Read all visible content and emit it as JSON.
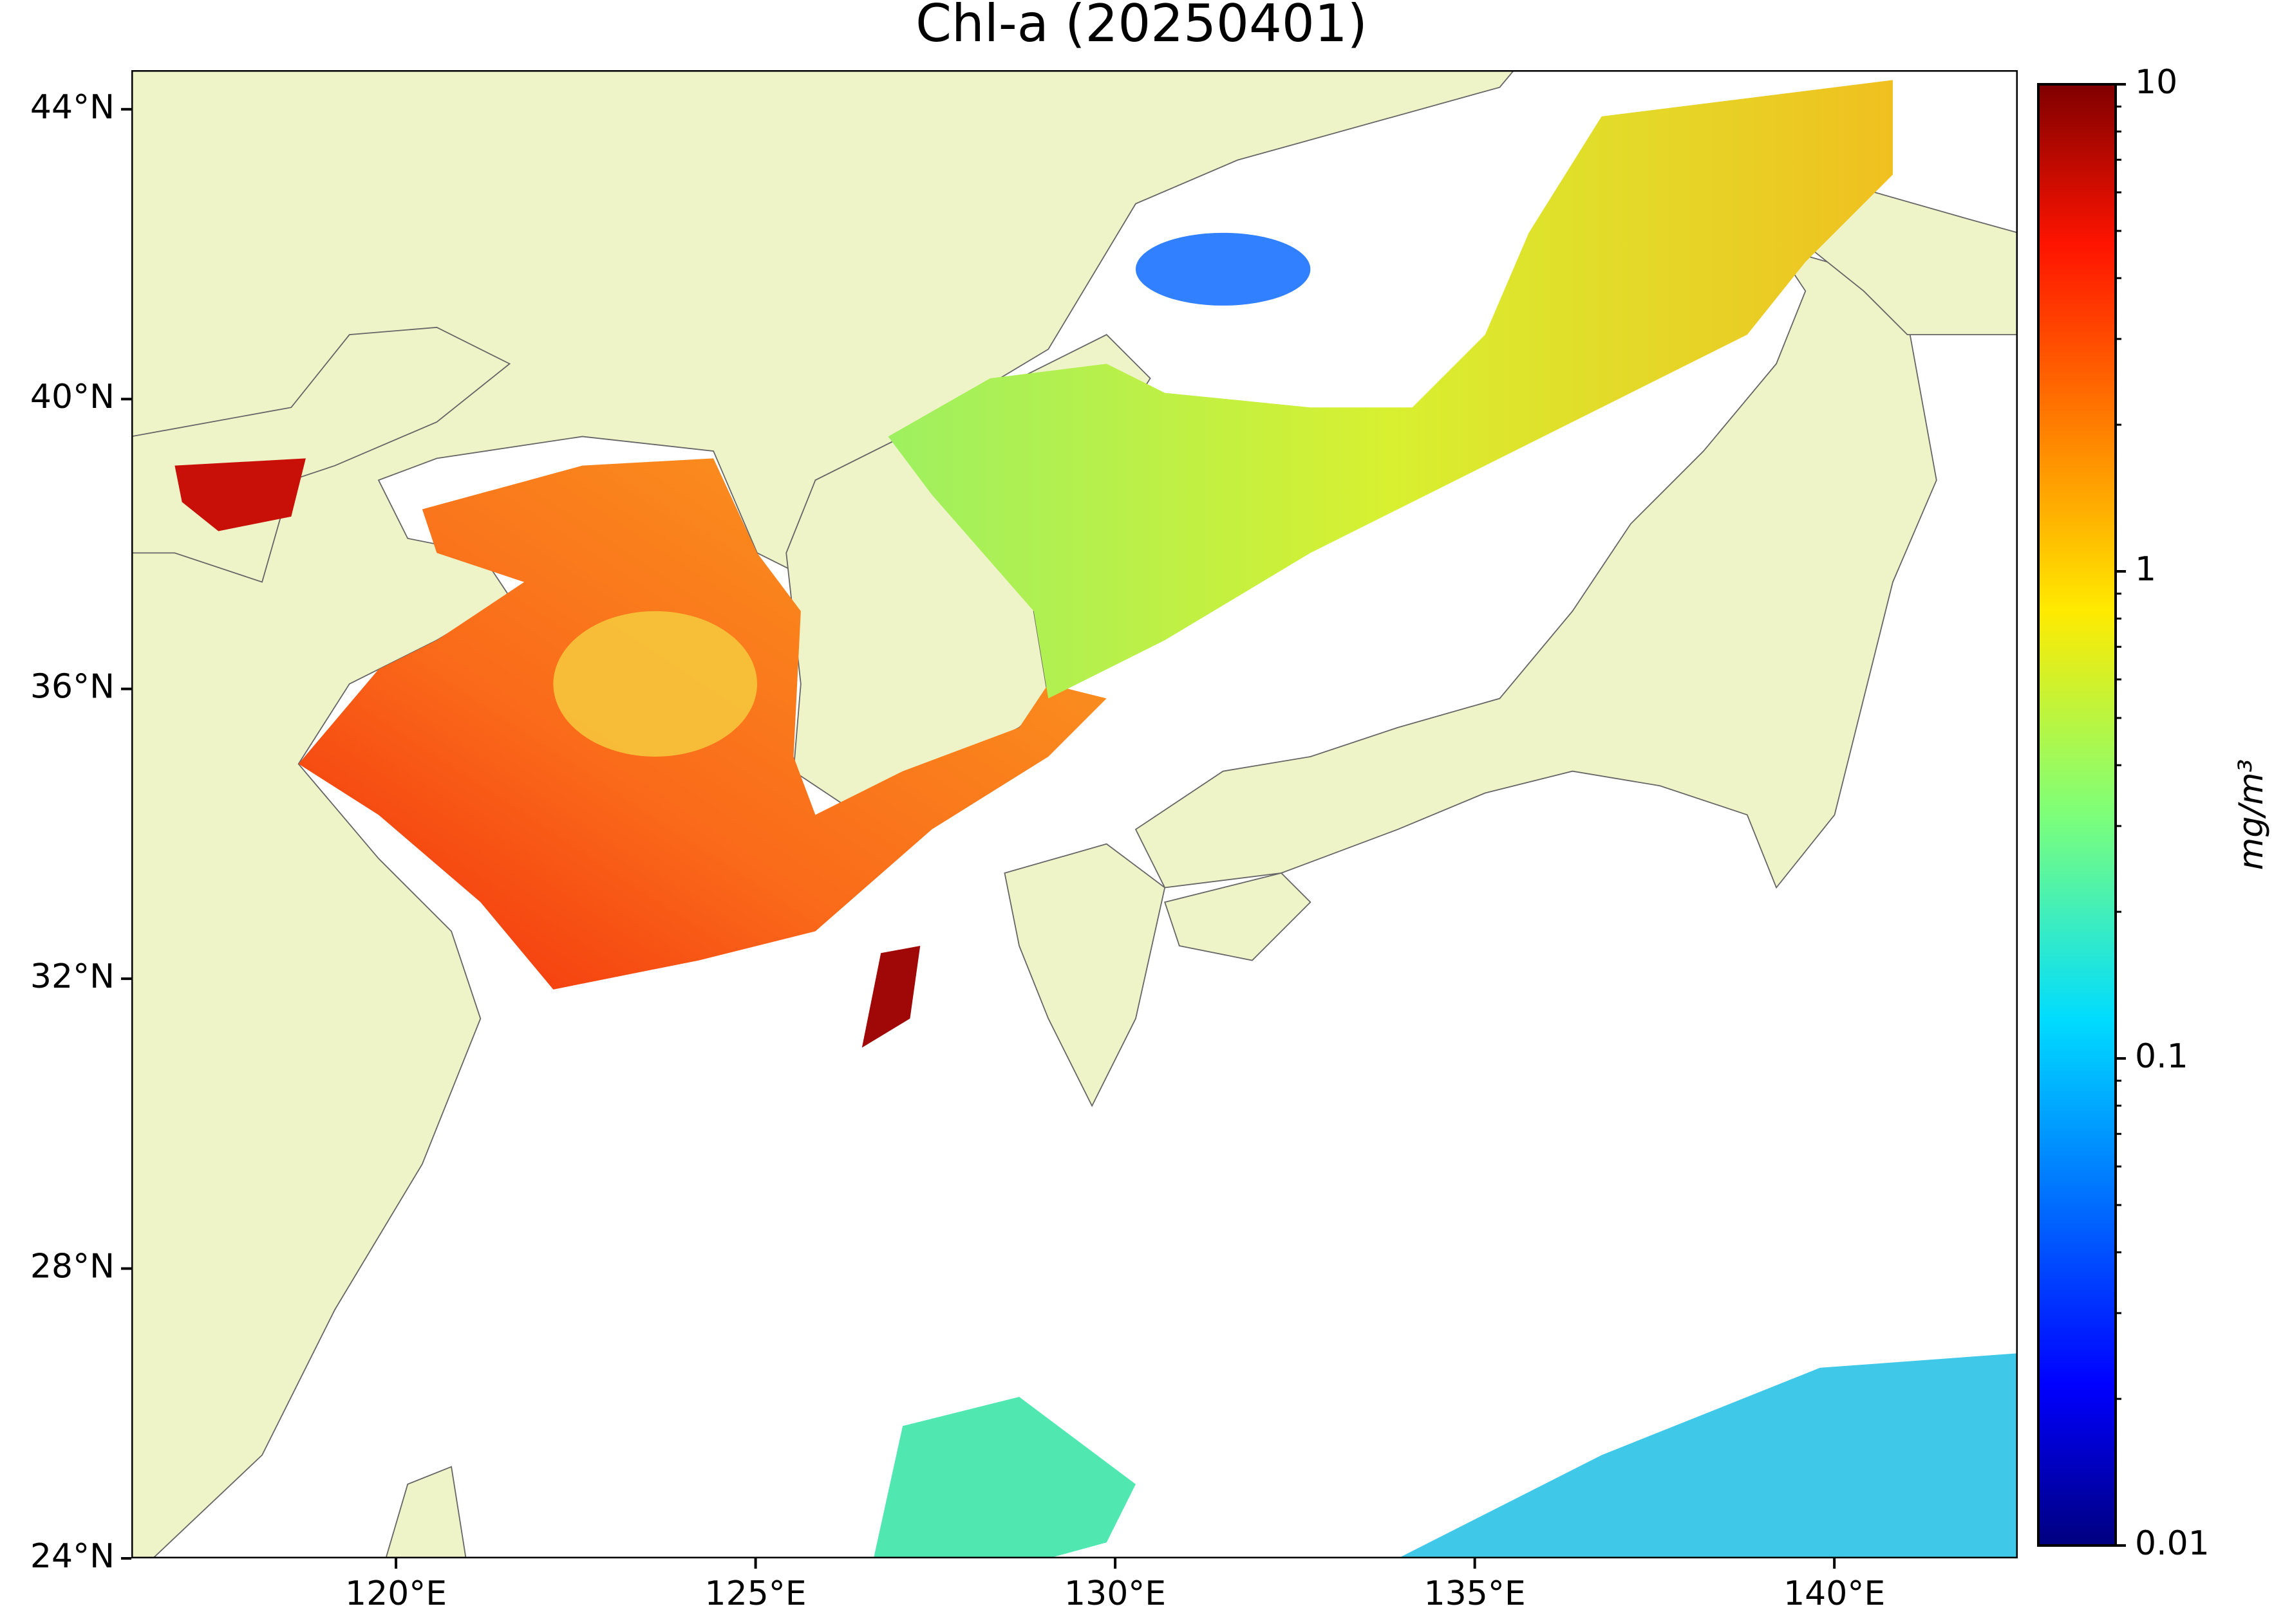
{
  "chart_data": {
    "type": "map",
    "title": "Chl-a (20250401)",
    "xlim": [
      116.32,
      142.55
    ],
    "ylim": [
      24,
      44.54
    ],
    "xticks": [
      {
        "value": 120,
        "label": "120°E"
      },
      {
        "value": 125,
        "label": "125°E"
      },
      {
        "value": 130,
        "label": "130°E"
      },
      {
        "value": 135,
        "label": "135°E"
      },
      {
        "value": 140,
        "label": "140°E"
      }
    ],
    "yticks": [
      {
        "value": 24,
        "label": "24°N"
      },
      {
        "value": 28,
        "label": "28°N"
      },
      {
        "value": 32,
        "label": "32°N"
      },
      {
        "value": 36,
        "label": "36°N"
      },
      {
        "value": 40,
        "label": "40°N"
      },
      {
        "value": 44,
        "label": "44°N"
      }
    ],
    "colorbar": {
      "label": "mg/m³",
      "scale": "log",
      "lim": [
        0.01,
        10
      ],
      "ticks": [
        0.01,
        0.1,
        1,
        10
      ],
      "minor_ticks": [
        0.02,
        0.03,
        0.04,
        0.05,
        0.06,
        0.07,
        0.08,
        0.09,
        0.2,
        0.3,
        0.4,
        0.5,
        0.6,
        0.7,
        0.8,
        0.9,
        2,
        3,
        4,
        5,
        6,
        7,
        8,
        9
      ]
    }
  }
}
